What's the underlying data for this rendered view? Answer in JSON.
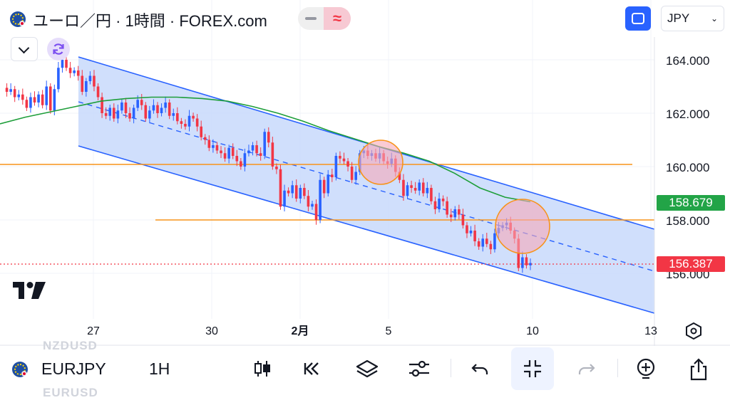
{
  "header": {
    "title": "ユーロ／円 · 1時間 · FOREX.com",
    "pill_icon": "wave-icon",
    "pill_glyph": "≈",
    "currency": "JPY"
  },
  "price_labels": {
    "ma": "158.679",
    "last": "156.387"
  },
  "colors": {
    "channel_fill": "#c8d9fb",
    "channel_line": "#2962ff",
    "ma_line": "#1e9e3a",
    "level_line": "#f7931a",
    "candle_up": "#2962ff",
    "candle_down": "#f23645",
    "ma_label_bg": "#22a447",
    "last_label_bg": "#f23645"
  },
  "chart_data": {
    "type": "candlestick",
    "y_axis": {
      "ticks": [
        "164.000",
        "162.000",
        "160.000",
        "158.000",
        "156.000"
      ],
      "range": [
        154.6,
        165.1
      ]
    },
    "x_axis": {
      "ticks": [
        "27",
        "30",
        "2月",
        "5",
        "10",
        "13"
      ]
    },
    "close_series": [
      162.95,
      162.8,
      162.9,
      162.6,
      162.7,
      162.5,
      162.2,
      162.6,
      162.4,
      162.7,
      162.3,
      163.0,
      162.1,
      162.9,
      163.7,
      164.0,
      163.7,
      163.5,
      163.6,
      163.4,
      162.8,
      163.2,
      163.4,
      163.0,
      162.6,
      162.0,
      161.9,
      162.2,
      161.8,
      162.1,
      162.4,
      162.0,
      161.8,
      162.2,
      162.5,
      162.3,
      161.8,
      162.1,
      162.3,
      162.0,
      162.2,
      162.4,
      161.9,
      162.0,
      161.7,
      161.6,
      161.5,
      161.9,
      161.8,
      161.5,
      161.1,
      161.0,
      160.7,
      160.8,
      160.6,
      160.5,
      160.3,
      160.7,
      160.4,
      160.2,
      160.0,
      160.5,
      160.6,
      160.8,
      160.5,
      160.4,
      161.3,
      160.9,
      160.0,
      159.9,
      158.5,
      159.1,
      159.0,
      159.3,
      158.8,
      159.2,
      158.9,
      158.5,
      158.6,
      158.0,
      159.5,
      159.0,
      159.7,
      159.6,
      160.4,
      160.3,
      160.2,
      160.0,
      159.5,
      159.8,
      160.5,
      160.6,
      160.4,
      160.5,
      160.3,
      160.5,
      160.2,
      160.1,
      160.3,
      159.8,
      159.5,
      158.9,
      159.3,
      159.2,
      159.1,
      159.4,
      159.0,
      159.2,
      158.7,
      158.4,
      158.8,
      158.7,
      158.2,
      158.1,
      158.4,
      158.2,
      157.8,
      157.5,
      157.6,
      157.2,
      157.0,
      157.3,
      157.1,
      156.9,
      157.5,
      157.7,
      157.8,
      157.9,
      157.6,
      157.3,
      156.2,
      156.6,
      156.3,
      156.387
    ],
    "ma_series": [
      161.6,
      161.85,
      162.05,
      162.25,
      162.45,
      162.55,
      162.6,
      162.6,
      162.55,
      162.45,
      162.25,
      162.0,
      161.7,
      161.35,
      161.05,
      160.75,
      160.5,
      160.2,
      159.75,
      159.2,
      158.85,
      158.679
    ],
    "channel": {
      "upper": [
        [
          164.1,
          157.7
        ]
      ],
      "lower": [
        [
          160.8,
          154.6
        ]
      ],
      "mid_dashed": true
    },
    "horizontal_levels": [
      160.1,
      158.05
    ],
    "highlights": [
      "circle-near-160.3",
      "circle-near-158.0"
    ],
    "last_price": 156.387,
    "ylabel": "",
    "xlabel": ""
  },
  "toolbar": {
    "symbol": "EURJPY",
    "interval": "1H",
    "ghost_above": "NZDUSD",
    "ghost_below": "EURUSD",
    "icons": [
      "candles-icon",
      "replay-icon",
      "layers-icon",
      "indicator-settings-icon",
      "undo-icon",
      "fullscreen-exit-icon",
      "redo-icon",
      "idea-bulb-icon",
      "share-icon"
    ]
  }
}
